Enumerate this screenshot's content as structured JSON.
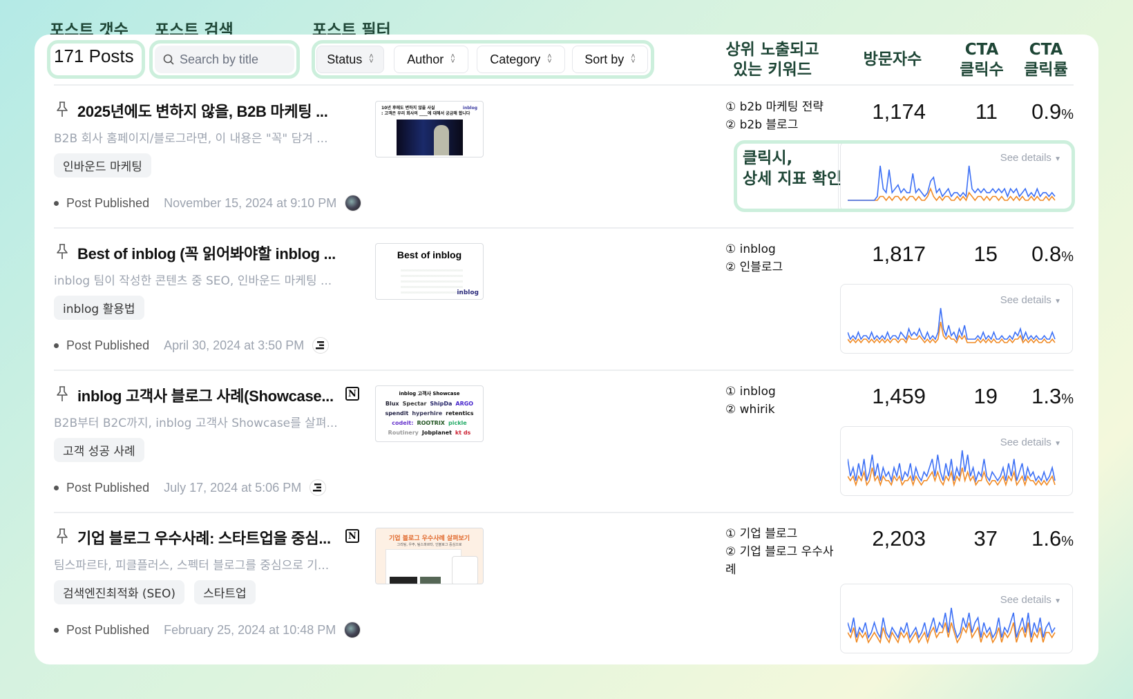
{
  "annotations": {
    "count": "포스트 갯수",
    "search": "포스트 검색",
    "filter": "포스트 필터",
    "click": "클릭시,\n상세 지표 확인"
  },
  "toolbar": {
    "post_count": "171 Posts",
    "search_placeholder": "Search by title",
    "filters": [
      "Status",
      "Author",
      "Category",
      "Sort by"
    ]
  },
  "columns": {
    "keywords": "상위 노출되고\n있는 키워드",
    "visitors": "방문자수",
    "cta_clicks": "CTA\n클릭수",
    "cta_rate": "CTA\n클릭률"
  },
  "colors": {
    "annotation_text": "#1e4636",
    "highlight": "#ccefdc",
    "visitors_line": "#3b6ff5",
    "clicks_line": "#f08a24"
  },
  "see_details": "See details",
  "published_label": "Post Published",
  "posts": [
    {
      "title": "2025년에도 변하지 않을, B2B 마케팅 ...",
      "description": "B2B 회사 홈페이지/블로그라면, 이 내용은 \"꼭\" 담겨 ...",
      "tags": [
        "인바운드 마케팅"
      ],
      "date": "November 15, 2024 at 9:10 PM",
      "author_icon": "photo-avatar",
      "notion": false,
      "thumb": {
        "line1": "10년 후에도 변하지 않을 사실",
        "line2": ": 고객은 우리 회사의 ____에 대해서 궁금해 합니다",
        "brand": "inblog"
      },
      "keywords": [
        "① b2b 마케팅 전략",
        "② b2b 블로그"
      ],
      "visitors": "1,174",
      "cta_clicks": "11",
      "cta_rate": "0.9",
      "pct": "%",
      "chart_data": {
        "type": "line",
        "series": [
          {
            "values": [
              0,
              0,
              0,
              0,
              0,
              0,
              0,
              0,
              0,
              0,
              1,
              9,
              3,
              2,
              8,
              2,
              3,
              4,
              2,
              3,
              2,
              2,
              7,
              2,
              3,
              2,
              1,
              2,
              5,
              6,
              2,
              3,
              1,
              2,
              3,
              1,
              2,
              2,
              1,
              2,
              1,
              9,
              3,
              2,
              3,
              2,
              3,
              2,
              2,
              3,
              2,
              3,
              2,
              3,
              1,
              3,
              2,
              3,
              1,
              2,
              3,
              1,
              2,
              1,
              3,
              1,
              2,
              2,
              1,
              2,
              1
            ]
          },
          {
            "values": [
              0,
              0,
              0,
              0,
              0,
              0,
              0,
              0,
              0,
              0,
              0,
              1,
              1,
              0,
              1,
              0,
              1,
              1,
              0,
              1,
              0,
              1,
              1,
              0,
              1,
              0,
              0,
              1,
              3,
              1,
              0,
              1,
              0,
              1,
              1,
              0,
              0,
              1,
              0,
              1,
              0,
              2,
              1,
              0,
              1,
              1,
              0,
              1,
              0,
              1,
              1,
              0,
              1,
              0,
              0,
              1,
              0,
              1,
              0,
              1,
              0,
              0,
              1,
              0,
              1,
              0,
              0,
              1,
              0,
              1,
              0
            ]
          }
        ]
      }
    },
    {
      "title": "Best of inblog (꼭 읽어봐야할 inblog ...",
      "description": "inblog 팀이 작성한 콘텐츠 중 SEO, 인바운드 마케팅 ...",
      "tags": [
        "inblog 활용법"
      ],
      "date": "April 30, 2024 at 3:50 PM",
      "author_icon": "inblog-avatar",
      "notion": false,
      "thumb": {
        "line1": "Best of inblog",
        "brand": "inblog"
      },
      "keywords": [
        "① inblog",
        "② 인블로그"
      ],
      "visitors": "1,817",
      "cta_clicks": "15",
      "cta_rate": "0.8",
      "pct": "%",
      "chart_data": {
        "type": "line",
        "series": [
          {
            "values": [
              3,
              1,
              2,
              1,
              3,
              1,
              2,
              2,
              1,
              3,
              1,
              2,
              1,
              2,
              1,
              3,
              1,
              2,
              2,
              1,
              3,
              2,
              1,
              4,
              2,
              3,
              2,
              4,
              2,
              1,
              3,
              1,
              2,
              1,
              3,
              10,
              4,
              2,
              5,
              2,
              3,
              1,
              4,
              2,
              5,
              1,
              1,
              1,
              1,
              2,
              1,
              3,
              1,
              2,
              1,
              3,
              1,
              1,
              2,
              1,
              1,
              2,
              1,
              3,
              2,
              4,
              1,
              3,
              1,
              2,
              1,
              2,
              1,
              1,
              2,
              1,
              1,
              3,
              1
            ]
          },
          {
            "values": [
              1,
              0,
              1,
              0,
              1,
              0,
              1,
              1,
              0,
              1,
              0,
              1,
              0,
              1,
              0,
              1,
              0,
              1,
              1,
              0,
              1,
              1,
              0,
              2,
              1,
              1,
              1,
              2,
              1,
              0,
              1,
              0,
              1,
              0,
              1,
              6,
              2,
              1,
              2,
              1,
              1,
              0,
              2,
              1,
              2,
              0,
              0,
              0,
              0,
              1,
              0,
              1,
              0,
              1,
              0,
              1,
              0,
              0,
              1,
              0,
              0,
              1,
              0,
              1,
              1,
              2,
              0,
              1,
              0,
              1,
              0,
              1,
              0,
              0,
              1,
              0,
              0,
              1,
              0
            ]
          }
        ]
      }
    },
    {
      "title": "inblog 고객사 블로그 사례(Showcase...",
      "description": "B2B부터 B2C까지, inblog 고객사 Showcase를 살펴...",
      "tags": [
        "고객 성공 사례"
      ],
      "date": "July 17, 2024 at 5:06 PM",
      "author_icon": "inblog-avatar",
      "notion": true,
      "thumb": {
        "line1": "inblog 고객사 Showcase",
        "logos": [
          "Blux",
          "Spectar",
          "ShipDa",
          "ARGO",
          "spendit",
          "hyperhire",
          "retentics",
          "codeit:",
          "ROOTRIX",
          "pickle",
          "Routinery",
          "Jobplanet",
          "kt ds"
        ]
      },
      "keywords": [
        "① inblog",
        "② whirik"
      ],
      "visitors": "1,459",
      "cta_clicks": "19",
      "cta_rate": "1.3",
      "pct": "%",
      "chart_data": {
        "type": "line",
        "series": [
          {
            "values": [
              6,
              2,
              4,
              1,
              5,
              2,
              6,
              1,
              3,
              7,
              2,
              5,
              1,
              4,
              2,
              3,
              1,
              4,
              2,
              5,
              1,
              3,
              2,
              5,
              1,
              4,
              2,
              1,
              3,
              2,
              4,
              6,
              2,
              7,
              3,
              1,
              5,
              2,
              6,
              1,
              4,
              2,
              8,
              3,
              7,
              2,
              4,
              1,
              3,
              2,
              6,
              2,
              1,
              3,
              2,
              1,
              2,
              4,
              1,
              5,
              2,
              6,
              1,
              3,
              5,
              1,
              4,
              2,
              3,
              1,
              2,
              1,
              3,
              1,
              2,
              4,
              1
            ]
          },
          {
            "values": [
              2,
              1,
              2,
              0,
              2,
              1,
              3,
              0,
              1,
              4,
              1,
              2,
              0,
              2,
              1,
              1,
              0,
              2,
              1,
              2,
              0,
              1,
              1,
              2,
              0,
              2,
              1,
              0,
              1,
              1,
              2,
              3,
              1,
              3,
              1,
              0,
              2,
              1,
              3,
              0,
              2,
              1,
              4,
              1,
              3,
              1,
              2,
              0,
              1,
              1,
              3,
              1,
              0,
              1,
              1,
              0,
              1,
              2,
              0,
              2,
              1,
              3,
              0,
              1,
              2,
              0,
              2,
              1,
              1,
              0,
              1,
              0,
              1,
              0,
              1,
              2,
              0
            ]
          }
        ]
      }
    },
    {
      "title": "기업 블로그 우수사례: 스타트업을 중심...",
      "description": "팀스파르타, 피클플러스, 스펙터 블로그를 중심으로 기...",
      "tags": [
        "검색엔진최적화 (SEO)",
        "스타트업"
      ],
      "date": "February 25, 2024 at 10:48 PM",
      "author_icon": "photo-avatar",
      "notion": true,
      "thumb": {
        "line1": "기업 블로그 우수사례 살펴보기",
        "line2": "그리팅, 우주, 팀스파르타, 인블로그 중심으로"
      },
      "keywords": [
        "① 기업 블로그",
        "② 기업 블로그 우수사례"
      ],
      "visitors": "2,203",
      "cta_clicks": "37",
      "cta_rate": "1.6",
      "pct": "%",
      "chart_data": {
        "type": "line",
        "series": [
          {
            "values": [
              4,
              2,
              5,
              1,
              3,
              2,
              4,
              1,
              2,
              4,
              2,
              1,
              5,
              2,
              1,
              3,
              2,
              1,
              3,
              2,
              4,
              1,
              2,
              3,
              1,
              2,
              4,
              1,
              3,
              5,
              2,
              4,
              3,
              6,
              2,
              7,
              3,
              1,
              2,
              5,
              3,
              6,
              2,
              4,
              5,
              1,
              4,
              2,
              3,
              1,
              2,
              5,
              1,
              3,
              2,
              4,
              6,
              1,
              3,
              5,
              2,
              6,
              1,
              4,
              2,
              5,
              1,
              3,
              4,
              2,
              3
            ]
          },
          {
            "values": [
              2,
              1,
              3,
              0,
              2,
              1,
              2,
              0,
              1,
              2,
              1,
              0,
              3,
              1,
              0,
              2,
              1,
              0,
              2,
              1,
              2,
              0,
              1,
              2,
              0,
              1,
              2,
              0,
              2,
              3,
              1,
              2,
              2,
              4,
              1,
              4,
              2,
              0,
              1,
              3,
              2,
              4,
              1,
              2,
              3,
              0,
              2,
              1,
              2,
              0,
              1,
              3,
              0,
              2,
              1,
              2,
              4,
              0,
              2,
              3,
              1,
              4,
              0,
              2,
              1,
              3,
              0,
              2,
              2,
              1,
              2
            ]
          }
        ]
      }
    }
  ]
}
